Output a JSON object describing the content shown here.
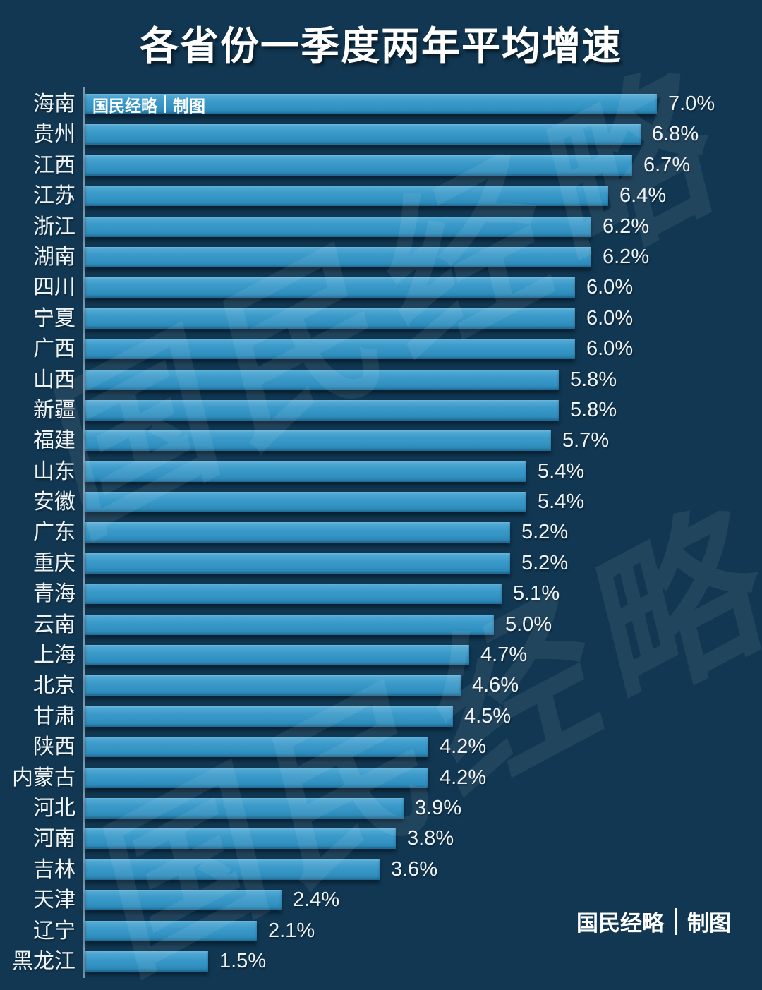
{
  "title": "各省份一季度两年平均增速",
  "credit": {
    "brand": "国民经略",
    "label": "制图"
  },
  "watermark": {
    "text": "国民经略"
  },
  "colors": {
    "background": "#113752",
    "bar_main": "#3a99c8",
    "bar_highlight": "#73bcdf",
    "bar_shadow_edge": "#2a85b5",
    "axis": "#7e98ab",
    "text": "#ffffff"
  },
  "chart_data": {
    "type": "bar",
    "orientation": "horizontal",
    "title": "各省份一季度两年平均增速",
    "xlabel": "",
    "ylabel": "",
    "value_unit": "%",
    "xlim": [
      0,
      7.5
    ],
    "grid": false,
    "legend": false,
    "categories": [
      "海南",
      "贵州",
      "江西",
      "江苏",
      "浙江",
      "湖南",
      "四川",
      "宁夏",
      "广西",
      "山西",
      "新疆",
      "福建",
      "山东",
      "安徽",
      "广东",
      "重庆",
      "青海",
      "云南",
      "上海",
      "北京",
      "甘肃",
      "陕西",
      "内蒙古",
      "河北",
      "河南",
      "吉林",
      "天津",
      "辽宁",
      "黑龙江"
    ],
    "values": [
      7.0,
      6.8,
      6.7,
      6.4,
      6.2,
      6.2,
      6.0,
      6.0,
      6.0,
      5.8,
      5.8,
      5.7,
      5.4,
      5.4,
      5.2,
      5.2,
      5.1,
      5.0,
      4.7,
      4.6,
      4.5,
      4.2,
      4.2,
      3.9,
      3.8,
      3.6,
      2.4,
      2.1,
      1.5
    ],
    "value_labels": [
      "7.0%",
      "6.8%",
      "6.7%",
      "6.4%",
      "6.2%",
      "6.2%",
      "6.0%",
      "6.0%",
      "6.0%",
      "5.8%",
      "5.8%",
      "5.7%",
      "5.4%",
      "5.4%",
      "5.2%",
      "5.2%",
      "5.1%",
      "5.0%",
      "4.7%",
      "4.6%",
      "4.5%",
      "4.2%",
      "4.2%",
      "3.9%",
      "3.8%",
      "3.6%",
      "2.4%",
      "2.1%",
      "1.5%"
    ]
  }
}
